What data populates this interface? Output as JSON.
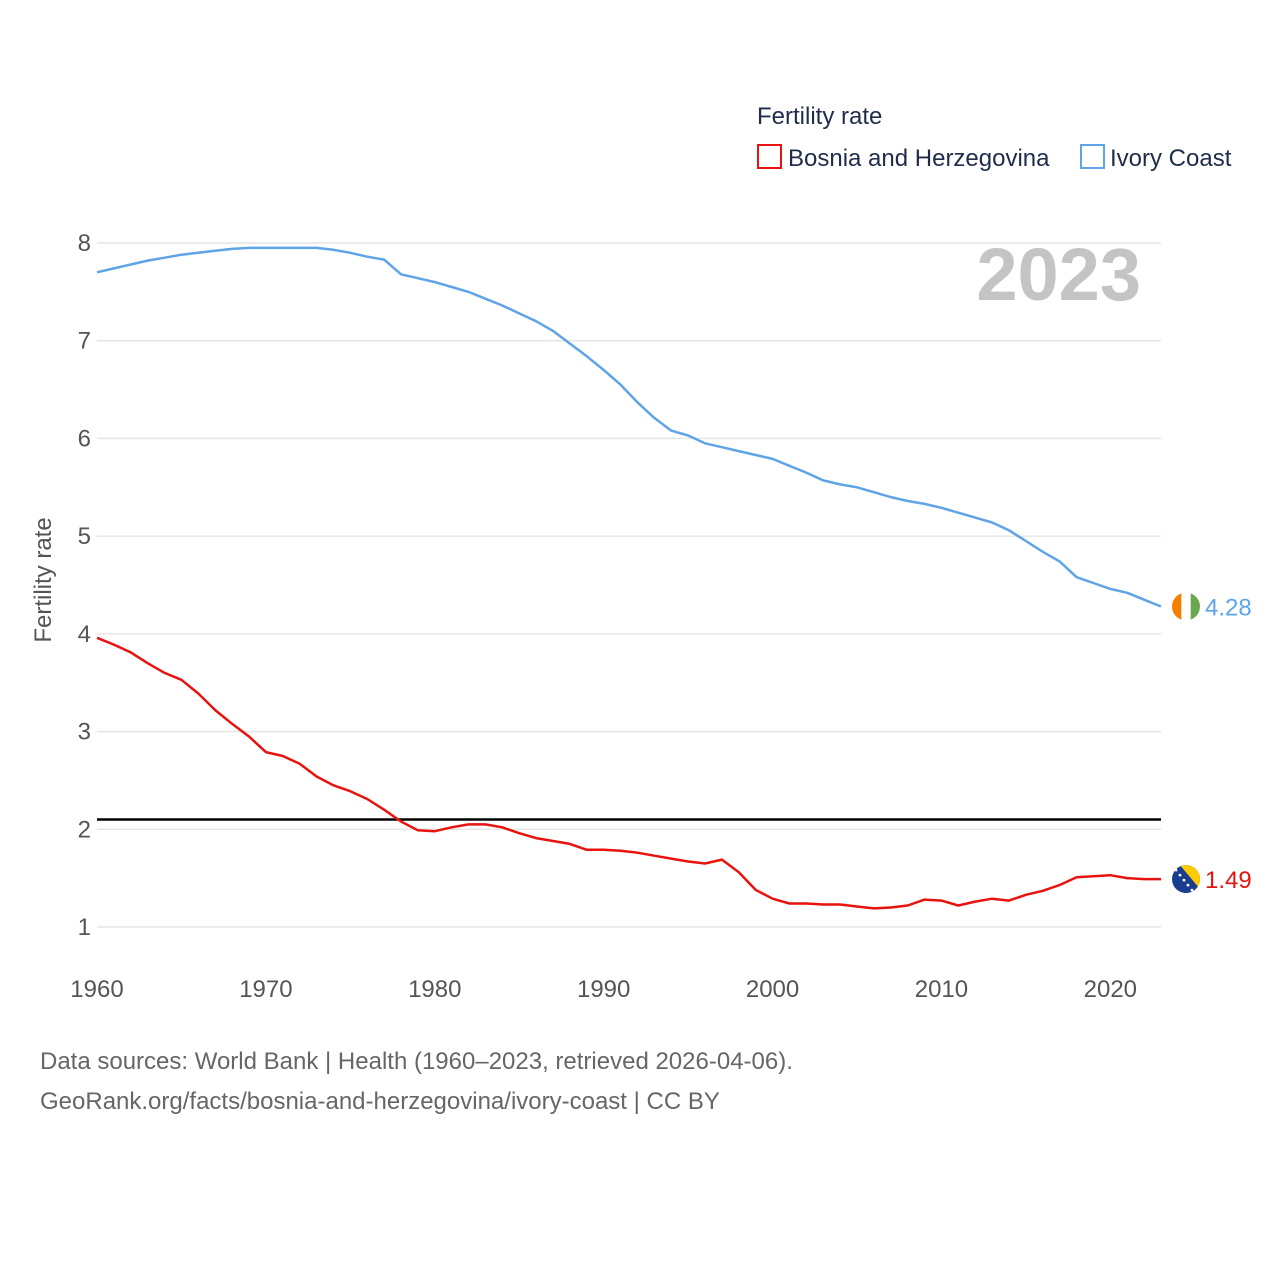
{
  "chart_data": {
    "type": "line",
    "legend_title": "Fertility rate",
    "ylabel": "Fertility rate",
    "xlabel": "",
    "year_label": "2023",
    "xlim": [
      1960,
      2023
    ],
    "ylim": [
      0.75,
      8.15
    ],
    "y_ticks": [
      "1",
      "2",
      "3",
      "4",
      "5",
      "6",
      "7",
      "8"
    ],
    "x_ticks": [
      "1960",
      "1970",
      "1980",
      "1990",
      "2000",
      "2010",
      "2020"
    ],
    "reference_line": 2.1,
    "series": [
      {
        "name": "Bosnia and Herzegovina",
        "color": "#e8130f",
        "end_label": "1.49",
        "flag_icon": "bosnia-flag-icon",
        "x": [
          1960,
          1961,
          1962,
          1963,
          1964,
          1965,
          1966,
          1967,
          1968,
          1969,
          1970,
          1971,
          1972,
          1973,
          1974,
          1975,
          1976,
          1977,
          1978,
          1979,
          1980,
          1981,
          1982,
          1983,
          1984,
          1985,
          1986,
          1987,
          1988,
          1989,
          1990,
          1991,
          1992,
          1993,
          1994,
          1995,
          1996,
          1997,
          1998,
          1999,
          2000,
          2001,
          2002,
          2003,
          2004,
          2005,
          2006,
          2007,
          2008,
          2009,
          2010,
          2011,
          2012,
          2013,
          2014,
          2015,
          2016,
          2017,
          2018,
          2019,
          2020,
          2021,
          2022,
          2023
        ],
        "values": [
          3.96,
          3.89,
          3.81,
          3.7,
          3.6,
          3.53,
          3.39,
          3.22,
          3.08,
          2.95,
          2.79,
          2.75,
          2.67,
          2.54,
          2.45,
          2.39,
          2.31,
          2.2,
          2.08,
          1.99,
          1.98,
          2.02,
          2.05,
          2.05,
          2.02,
          1.96,
          1.91,
          1.88,
          1.85,
          1.79,
          1.79,
          1.78,
          1.76,
          1.73,
          1.7,
          1.67,
          1.65,
          1.69,
          1.56,
          1.38,
          1.29,
          1.24,
          1.24,
          1.23,
          1.23,
          1.21,
          1.19,
          1.2,
          1.22,
          1.28,
          1.27,
          1.22,
          1.26,
          1.29,
          1.27,
          1.33,
          1.37,
          1.43,
          1.51,
          1.52,
          1.53,
          1.5,
          1.49,
          1.49
        ]
      },
      {
        "name": "Ivory Coast",
        "color": "#5ea4e7",
        "end_label": "4.28",
        "flag_icon": "ivory-coast-flag-icon",
        "x": [
          1960,
          1961,
          1962,
          1963,
          1964,
          1965,
          1966,
          1967,
          1968,
          1969,
          1970,
          1971,
          1972,
          1973,
          1974,
          1975,
          1976,
          1977,
          1978,
          1979,
          1980,
          1981,
          1982,
          1983,
          1984,
          1985,
          1986,
          1987,
          1988,
          1989,
          1990,
          1991,
          1992,
          1993,
          1994,
          1995,
          1996,
          1997,
          1998,
          1999,
          2000,
          2001,
          2002,
          2003,
          2004,
          2005,
          2006,
          2007,
          2008,
          2009,
          2010,
          2011,
          2012,
          2013,
          2014,
          2015,
          2016,
          2017,
          2018,
          2019,
          2020,
          2021,
          2022,
          2023
        ],
        "values": [
          7.7,
          7.74,
          7.78,
          7.82,
          7.85,
          7.88,
          7.9,
          7.92,
          7.94,
          7.95,
          7.95,
          7.95,
          7.95,
          7.95,
          7.93,
          7.9,
          7.86,
          7.83,
          7.68,
          7.64,
          7.6,
          7.55,
          7.5,
          7.43,
          7.36,
          7.28,
          7.2,
          7.1,
          6.97,
          6.84,
          6.7,
          6.55,
          6.37,
          6.21,
          6.08,
          6.03,
          5.95,
          5.91,
          5.87,
          5.83,
          5.79,
          5.72,
          5.65,
          5.57,
          5.53,
          5.5,
          5.45,
          5.4,
          5.36,
          5.33,
          5.29,
          5.24,
          5.19,
          5.14,
          5.06,
          4.95,
          4.84,
          4.74,
          4.58,
          4.52,
          4.46,
          4.42,
          4.35,
          4.28
        ]
      }
    ]
  },
  "footer": {
    "source_line": "Data sources: World Bank | Health (1960–2023, retrieved 2026-04-06).",
    "credit_line": "GeoRank.org/facts/bosnia-and-herzegovina/ivory-coast | CC BY"
  }
}
